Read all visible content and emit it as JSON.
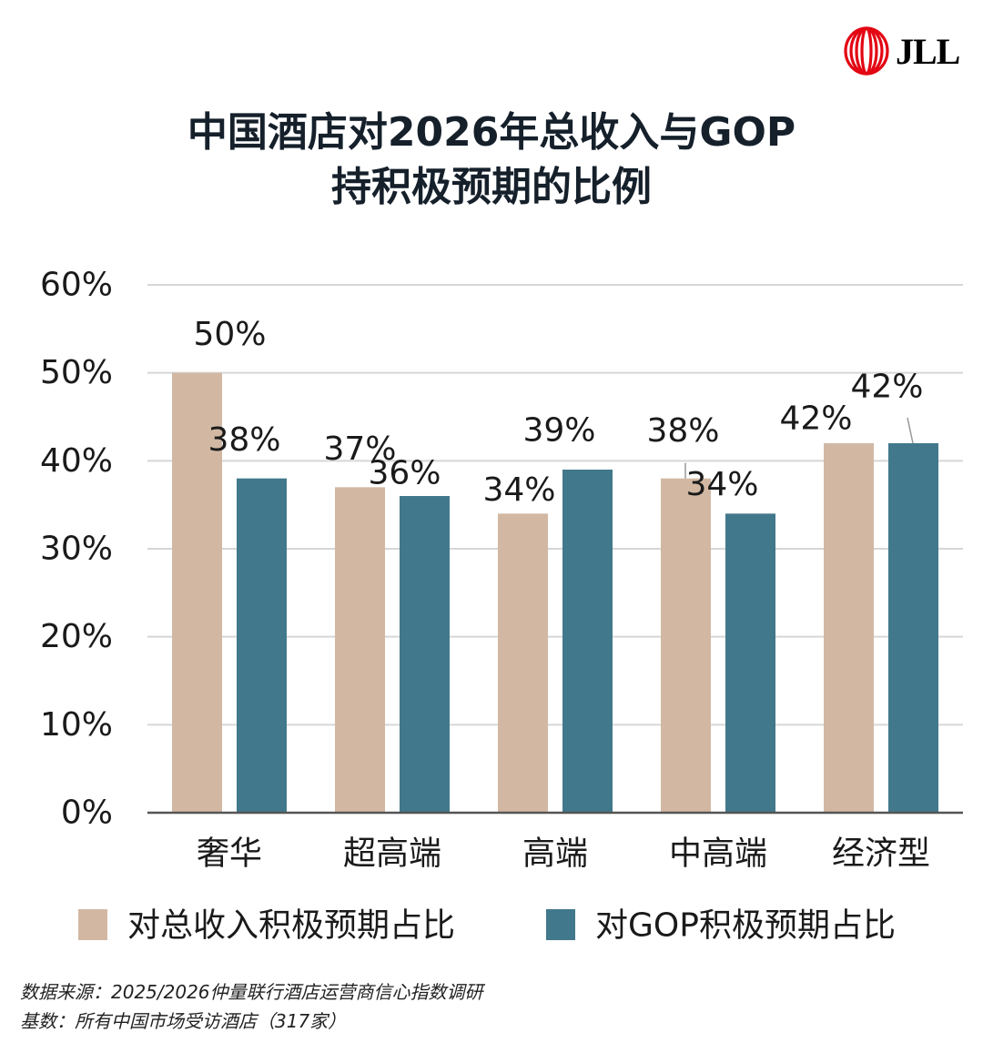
{
  "logo": {
    "text": "JLL",
    "color": "#e30613"
  },
  "title": {
    "line1": "中国酒店对2026年总收入与GOP",
    "line2": "持积极预期的比例"
  },
  "chart_data": {
    "type": "bar",
    "title": "中国酒店对2026年总收入与GOP持积极预期的比例",
    "categories": [
      "奢华",
      "超高端",
      "高端",
      "中高端",
      "经济型"
    ],
    "series": [
      {
        "name": "对总收入积极预期占比",
        "values": [
          50,
          37,
          34,
          38,
          42
        ],
        "color": "#d2b8a3"
      },
      {
        "name": "对GOP积极预期占比",
        "values": [
          38,
          36,
          39,
          34,
          42
        ],
        "color": "#42788b"
      }
    ],
    "data_labels": [
      [
        "50%",
        "37%",
        "34%",
        "38%",
        "42%"
      ],
      [
        "38%",
        "36%",
        "39%",
        "34%",
        "42%"
      ]
    ],
    "yticks": [
      "0%",
      "10%",
      "20%",
      "30%",
      "40%",
      "50%",
      "60%"
    ],
    "ylim": [
      0,
      60
    ],
    "yunit": "%",
    "grid": true,
    "legend": "bottom",
    "xlabel": "",
    "ylabel": ""
  },
  "footer": {
    "source": "数据来源：2025/2026仲量联行酒店运营商信心指数调研",
    "base": "基数：所有中国市场受访酒店（317家）"
  }
}
